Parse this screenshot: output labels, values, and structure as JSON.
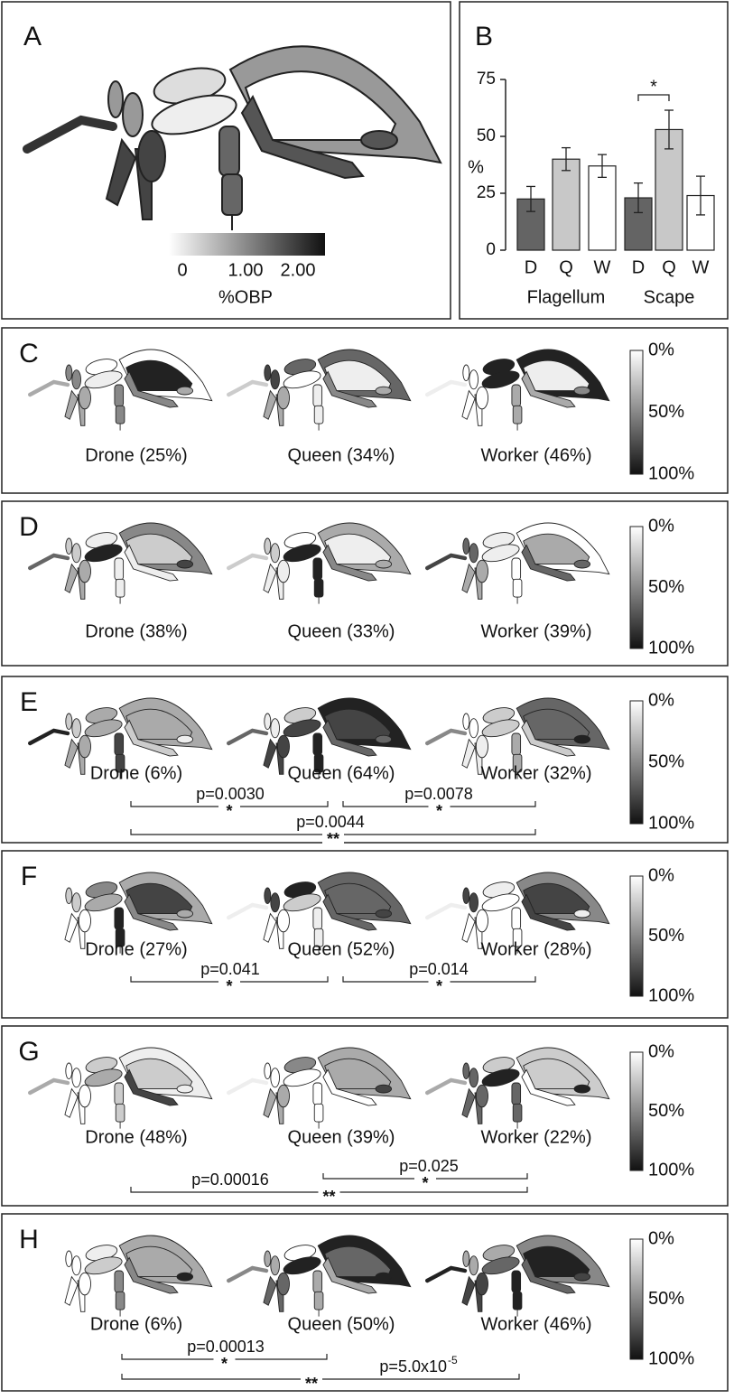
{
  "panel_a": {
    "label": "A",
    "colorbar_ticks": [
      "0",
      "1.00",
      "2.00"
    ],
    "colorbar_label": "%OBP"
  },
  "chart_data": {
    "type": "bar",
    "label": "B",
    "ylabel": "%",
    "ylim": [
      0,
      75
    ],
    "yticks": [
      0,
      25,
      50,
      75
    ],
    "groups": [
      "Flagellum",
      "Scape"
    ],
    "categories": [
      "D",
      "Q",
      "W",
      "D",
      "Q",
      "W"
    ],
    "values": [
      22.5,
      40,
      37,
      23,
      53,
      24
    ],
    "errors": [
      5.5,
      5,
      5,
      6.5,
      8.5,
      8.5
    ],
    "colors": [
      "#646464",
      "#c8c8c8",
      "#ffffff",
      "#646464",
      "#c8c8c8",
      "#ffffff"
    ],
    "annotation": "*"
  },
  "rows": [
    {
      "label": "C",
      "captions": [
        "Drone (25%)",
        "Queen (34%)",
        "Worker (46%)"
      ],
      "colorbar_ticks": [
        "0%",
        "50%",
        "100%"
      ],
      "brackets": []
    },
    {
      "label": "D",
      "captions": [
        "Drone (38%)",
        "Queen (33%)",
        "Worker (39%)"
      ],
      "colorbar_ticks": [
        "0%",
        "50%",
        "100%"
      ],
      "brackets": []
    },
    {
      "label": "E",
      "captions": [
        "Drone (6%)",
        "Queen (64%)",
        "Worker (32%)"
      ],
      "colorbar_ticks": [
        "0%",
        "50%",
        "100%"
      ],
      "brackets": [
        {
          "p": "p=0.0030",
          "sig": "*"
        },
        {
          "p": "p=0.0078",
          "sig": "*"
        },
        {
          "p": "p=0.0044",
          "sig": "**"
        }
      ]
    },
    {
      "label": "F",
      "captions": [
        "Drone (27%)",
        "Queen (52%)",
        "Worker (28%)"
      ],
      "colorbar_ticks": [
        "0%",
        "50%",
        "100%"
      ],
      "brackets": [
        {
          "p": "p=0.041",
          "sig": "*"
        },
        {
          "p": "p=0.014",
          "sig": "*"
        }
      ]
    },
    {
      "label": "G",
      "captions": [
        "Drone (48%)",
        "Queen (39%)",
        "Worker (22%)"
      ],
      "colorbar_ticks": [
        "0%",
        "50%",
        "100%"
      ],
      "brackets": [
        {
          "p": "p=0.025",
          "sig": "*"
        },
        {
          "p": "p=0.00016",
          "sig": "**"
        }
      ]
    },
    {
      "label": "H",
      "captions": [
        "Drone (6%)",
        "Queen (50%)",
        "Worker (46%)"
      ],
      "colorbar_ticks": [
        "0%",
        "50%",
        "100%"
      ],
      "brackets": [
        {
          "p": "p=0.00013",
          "sig": "*"
        },
        {
          "p": "p=5.0x10",
          "p_sup": "-5",
          "sig": "**"
        }
      ]
    }
  ]
}
